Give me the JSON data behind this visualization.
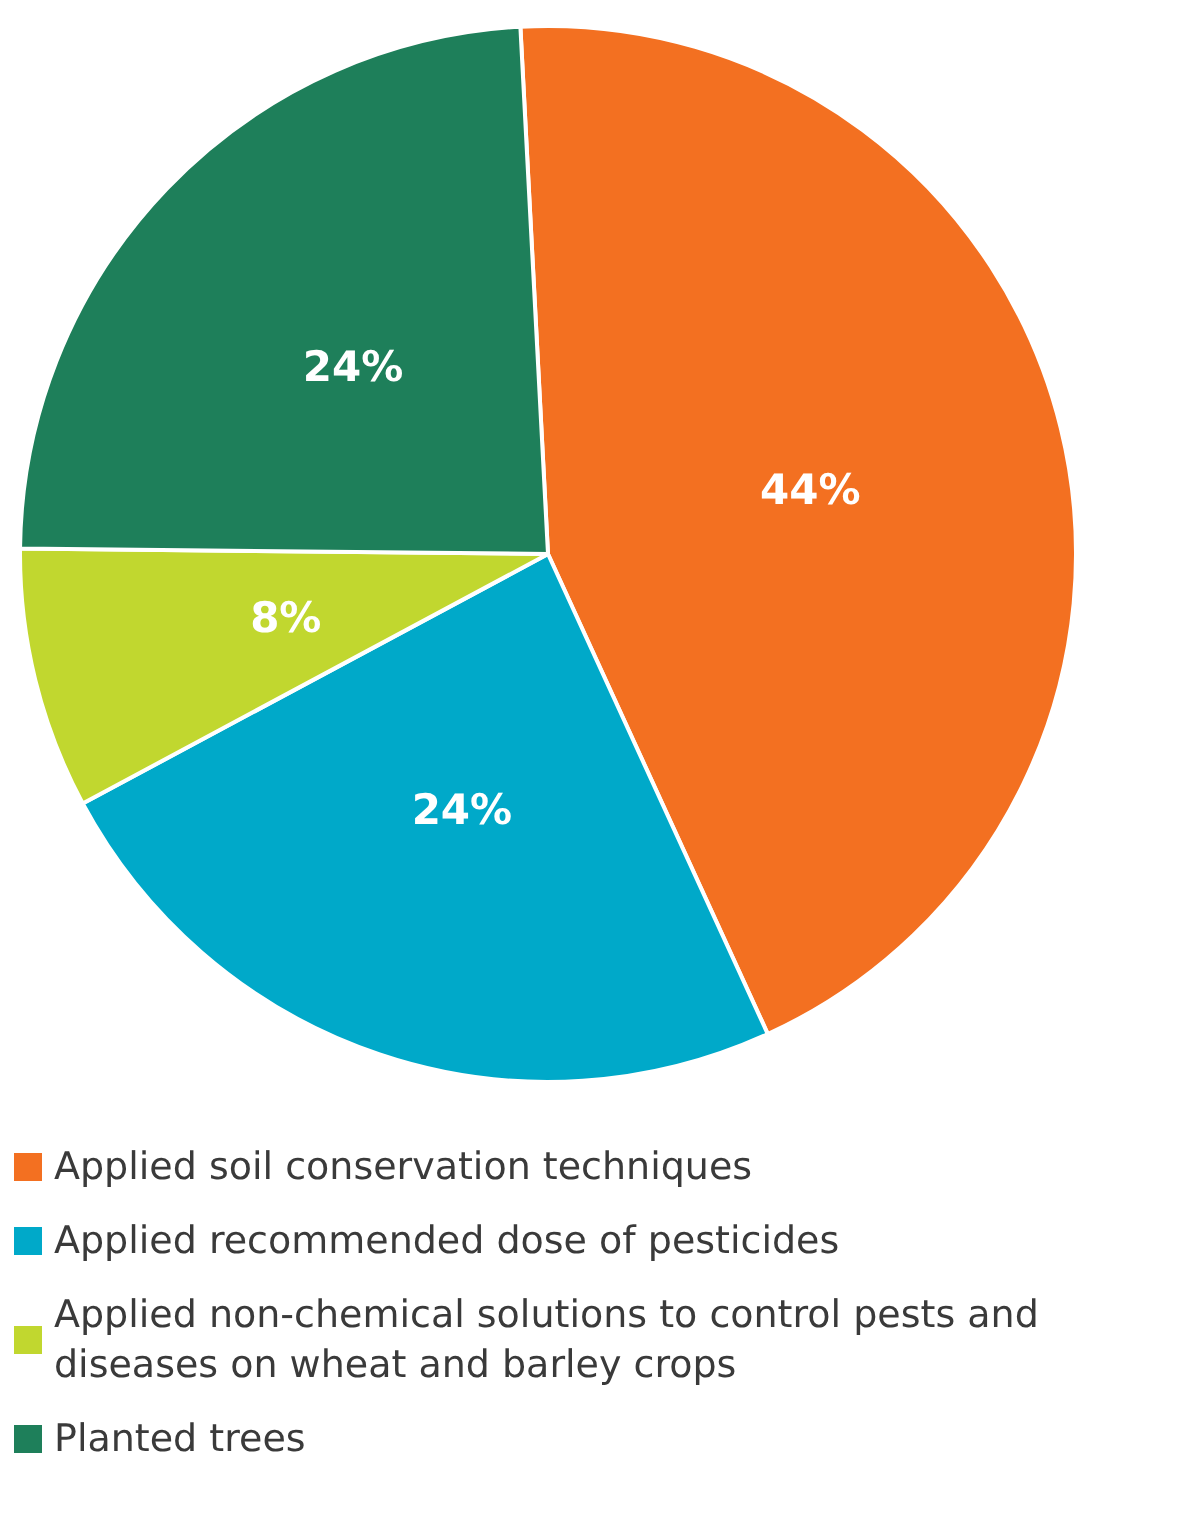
{
  "chart_data": {
    "type": "pie",
    "categories": [
      "Applied soil conservation techniques",
      "Applied recommended dose of pesticides",
      "Applied non-chemical solutions to control pests and diseases on wheat and barley crops",
      "Planted trees"
    ],
    "values": [
      44,
      24,
      8,
      24
    ],
    "colors": [
      "#f37021",
      "#00a9c9",
      "#c1d72f",
      "#1e7f5a"
    ],
    "value_labels": [
      "44%",
      "24%",
      "8%",
      "24%"
    ],
    "legend": "bottom left"
  }
}
